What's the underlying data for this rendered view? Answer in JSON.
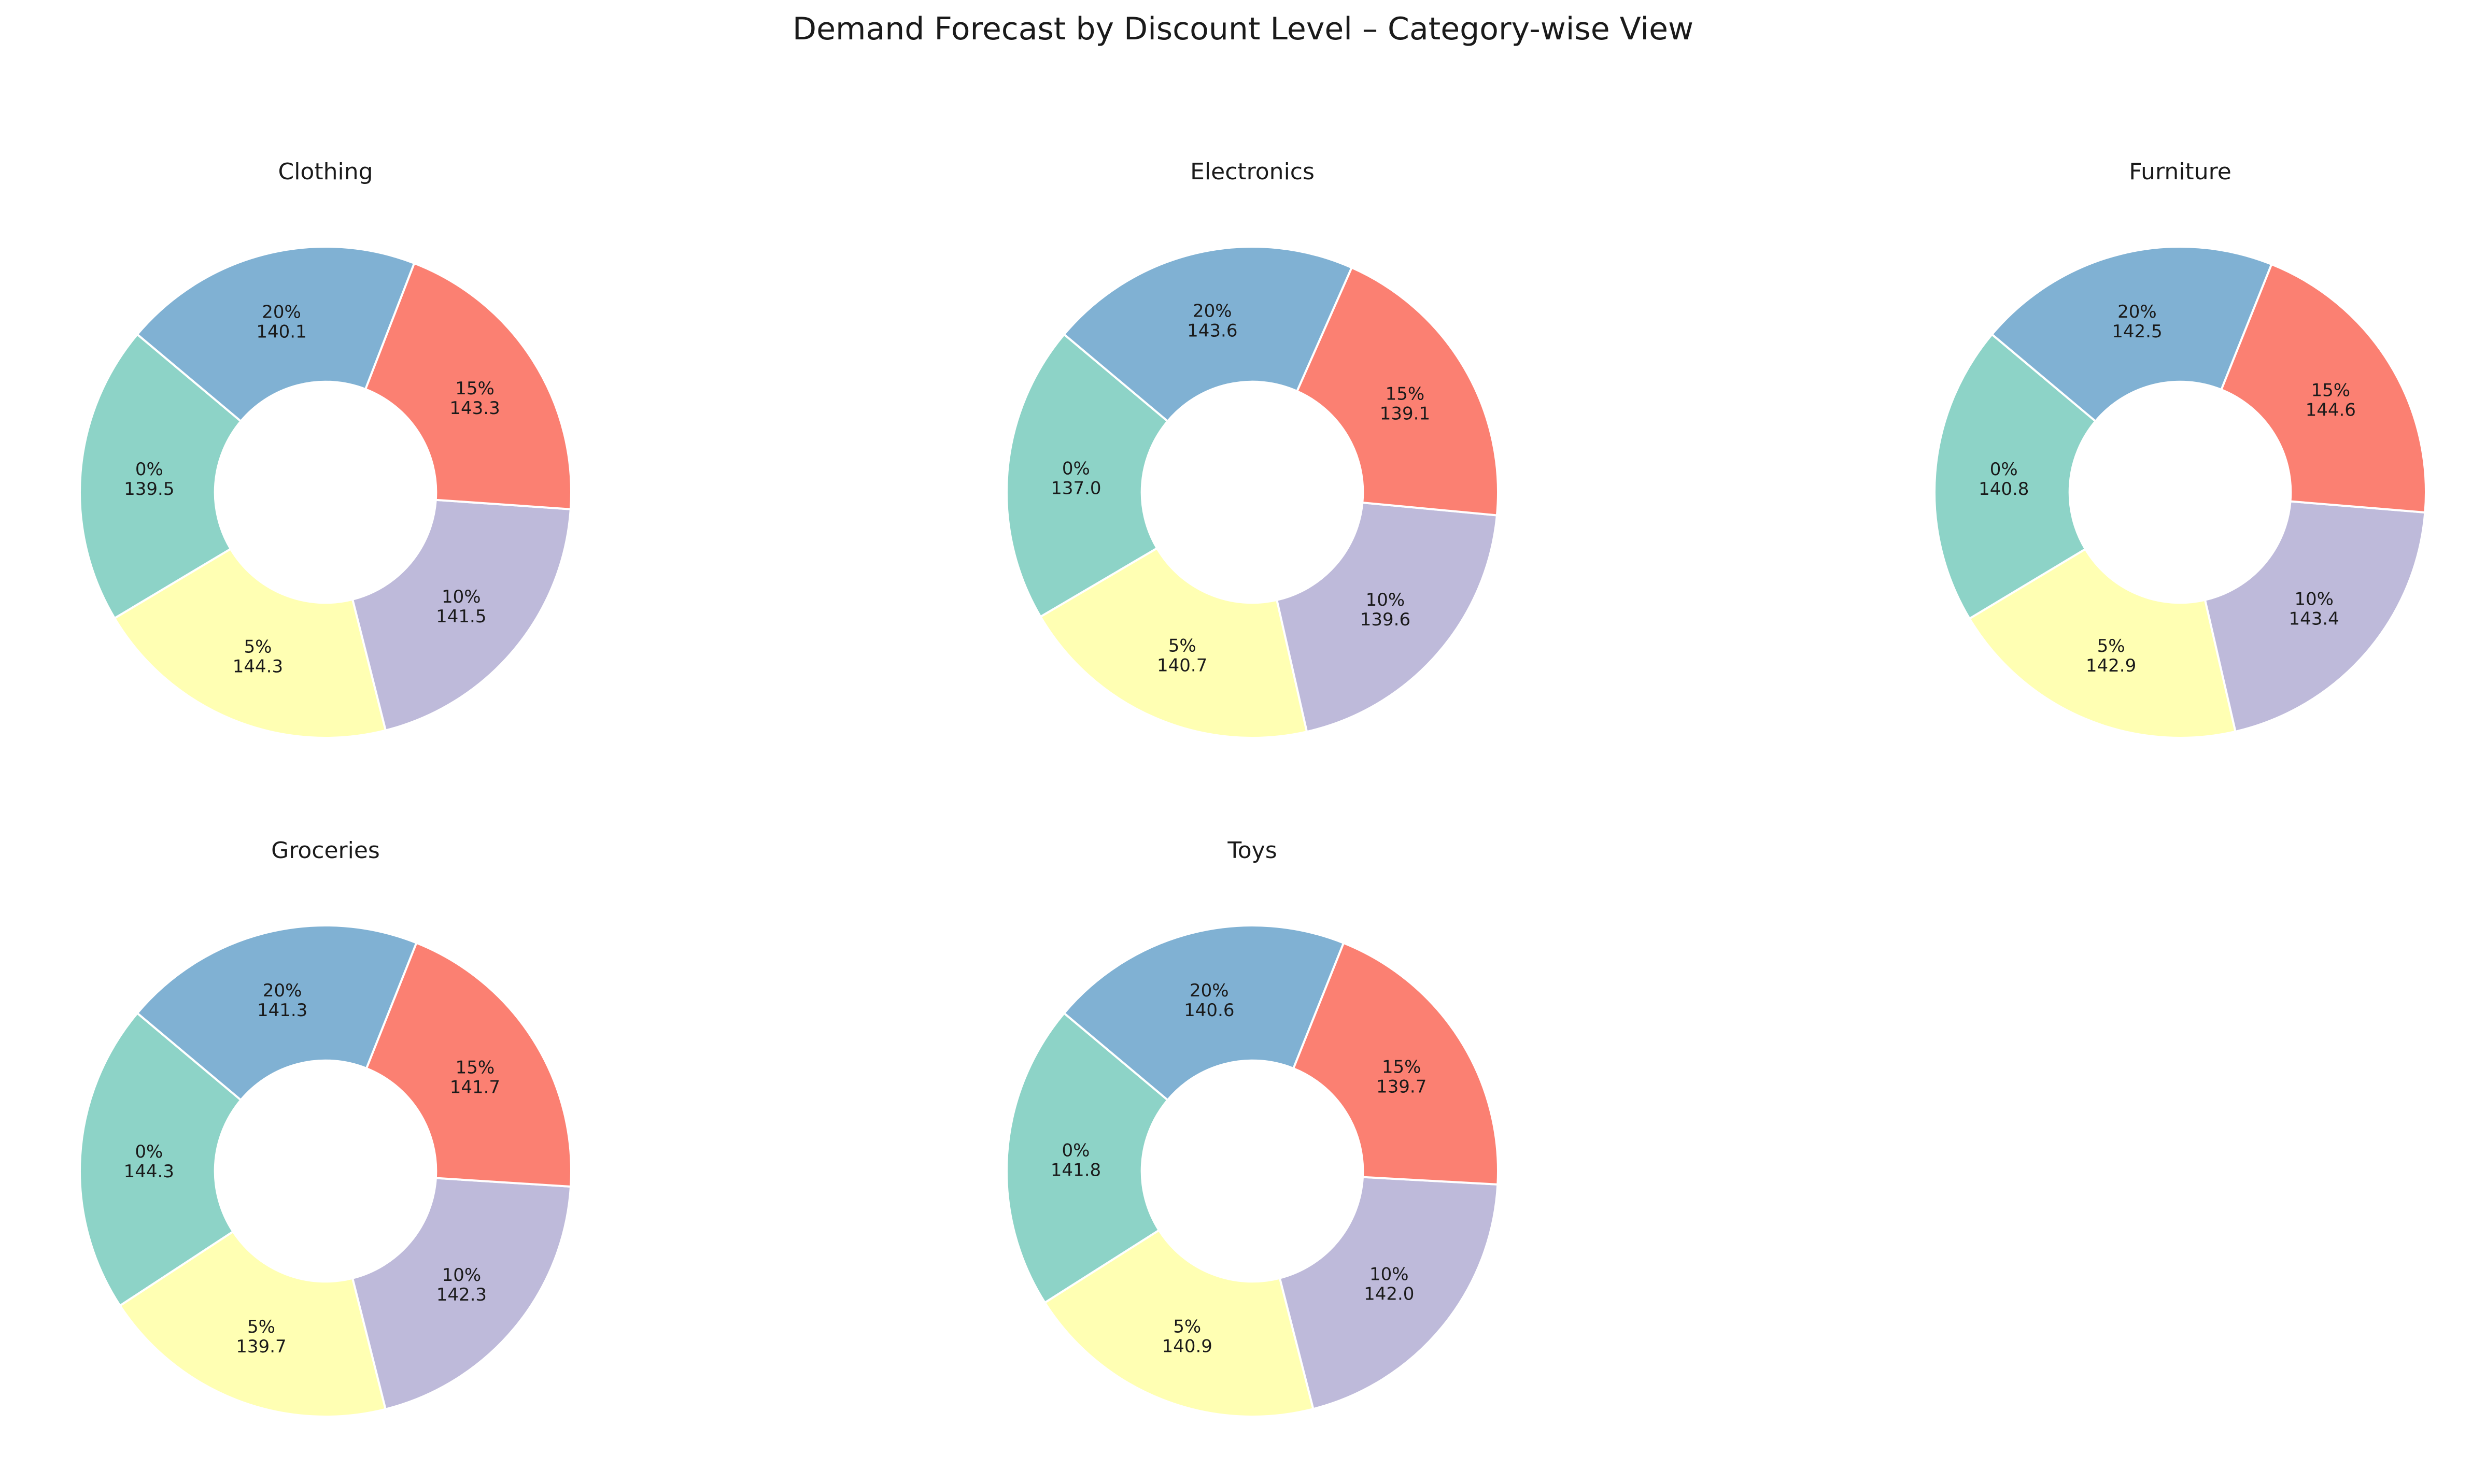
{
  "figure": {
    "title": "Demand Forecast by Discount Level – Category-wise View"
  },
  "chart_data": [
    {
      "type": "pie",
      "title": "Clothing",
      "categories": [
        "0%",
        "5%",
        "10%",
        "15%",
        "20%"
      ],
      "values": [
        139.5,
        144.3,
        141.5,
        143.3,
        140.1
      ],
      "colors": [
        "#8dd3c7",
        "#ffffb3",
        "#bebada",
        "#fb8072",
        "#80b1d3"
      ],
      "legend": "none",
      "donut": true
    },
    {
      "type": "pie",
      "title": "Electronics",
      "categories": [
        "0%",
        "5%",
        "10%",
        "15%",
        "20%"
      ],
      "values": [
        137.0,
        140.7,
        139.6,
        139.1,
        143.6
      ],
      "colors": [
        "#8dd3c7",
        "#ffffb3",
        "#bebada",
        "#fb8072",
        "#80b1d3"
      ],
      "legend": "none",
      "donut": true
    },
    {
      "type": "pie",
      "title": "Furniture",
      "categories": [
        "0%",
        "5%",
        "10%",
        "15%",
        "20%"
      ],
      "values": [
        140.8,
        142.9,
        143.4,
        144.6,
        142.5
      ],
      "colors": [
        "#8dd3c7",
        "#ffffb3",
        "#bebada",
        "#fb8072",
        "#80b1d3"
      ],
      "legend": "none",
      "donut": true
    },
    {
      "type": "pie",
      "title": "Groceries",
      "categories": [
        "0%",
        "5%",
        "10%",
        "15%",
        "20%"
      ],
      "values": [
        144.3,
        139.7,
        142.3,
        141.7,
        141.3
      ],
      "colors": [
        "#8dd3c7",
        "#ffffb3",
        "#bebada",
        "#fb8072",
        "#80b1d3"
      ],
      "legend": "none",
      "donut": true
    },
    {
      "type": "pie",
      "title": "Toys",
      "categories": [
        "0%",
        "5%",
        "10%",
        "15%",
        "20%"
      ],
      "values": [
        141.8,
        140.9,
        142.0,
        139.7,
        140.6
      ],
      "colors": [
        "#8dd3c7",
        "#ffffb3",
        "#bebada",
        "#fb8072",
        "#80b1d3"
      ],
      "legend": "none",
      "donut": true
    }
  ]
}
